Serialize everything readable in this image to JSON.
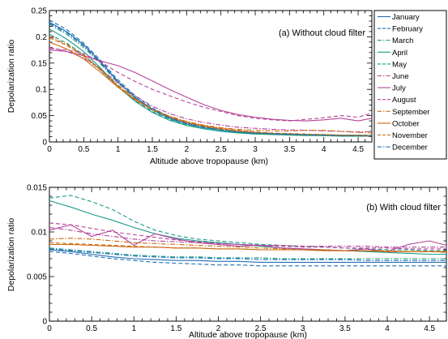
{
  "chart_data": [
    {
      "type": "line",
      "title": "(a) Without cloud filter",
      "xlabel": "Altitude above tropopause (km)",
      "ylabel": "Depolarization ratio",
      "xlim": [
        0,
        4.7
      ],
      "ylim": [
        0,
        0.25
      ],
      "x_ticks": [
        0,
        0.5,
        1,
        1.5,
        2,
        2.5,
        3,
        3.5,
        4,
        4.5
      ],
      "y_ticks": [
        0,
        0.05,
        0.1,
        0.15,
        0.2,
        0.25
      ],
      "x_tick_labels": [
        "0",
        "0.5",
        "1",
        "1.5",
        "2",
        "2.5",
        "3",
        "3.5",
        "4",
        "4.5"
      ],
      "y_tick_labels": [
        "0",
        "0.05",
        "0.1",
        "0.15",
        "0.2",
        "0.25"
      ],
      "x": [
        0,
        0.25,
        0.5,
        0.75,
        1,
        1.25,
        1.5,
        1.75,
        2,
        2.25,
        2.5,
        2.75,
        3,
        3.25,
        3.5,
        3.75,
        4,
        4.25,
        4.5,
        4.7
      ],
      "legend_position": "right, outside",
      "grid": false,
      "series": [
        {
          "name": "January",
          "color": "#1f6fb4",
          "dash": "solid",
          "values": [
            0.228,
            0.21,
            0.185,
            0.152,
            0.115,
            0.085,
            0.062,
            0.045,
            0.034,
            0.027,
            0.022,
            0.018,
            0.016,
            0.015,
            0.014,
            0.013,
            0.012,
            0.012,
            0.011,
            0.011
          ]
        },
        {
          "name": "February",
          "color": "#1f6fb4",
          "dash": "dashed",
          "values": [
            0.232,
            0.214,
            0.188,
            0.155,
            0.118,
            0.088,
            0.065,
            0.048,
            0.036,
            0.029,
            0.023,
            0.019,
            0.017,
            0.016,
            0.015,
            0.014,
            0.013,
            0.012,
            0.012,
            0.012
          ]
        },
        {
          "name": "March",
          "color": "#1a9a8a",
          "dash": "dashdot",
          "values": [
            0.224,
            0.205,
            0.18,
            0.148,
            0.112,
            0.083,
            0.06,
            0.044,
            0.033,
            0.027,
            0.022,
            0.018,
            0.016,
            0.015,
            0.014,
            0.013,
            0.013,
            0.012,
            0.012,
            0.012
          ]
        },
        {
          "name": "April",
          "color": "#1a9a8a",
          "dash": "solid",
          "values": [
            0.215,
            0.196,
            0.172,
            0.14,
            0.105,
            0.077,
            0.056,
            0.041,
            0.031,
            0.025,
            0.02,
            0.017,
            0.015,
            0.014,
            0.013,
            0.012,
            0.012,
            0.011,
            0.011,
            0.011
          ]
        },
        {
          "name": "May",
          "color": "#1a9a8a",
          "dash": "dashed",
          "values": [
            0.205,
            0.188,
            0.166,
            0.136,
            0.104,
            0.078,
            0.058,
            0.043,
            0.033,
            0.027,
            0.022,
            0.019,
            0.017,
            0.016,
            0.015,
            0.014,
            0.014,
            0.013,
            0.013,
            0.013
          ]
        },
        {
          "name": "June",
          "color": "#b4449a",
          "dash": "dashdot",
          "values": [
            0.18,
            0.172,
            0.16,
            0.138,
            0.112,
            0.088,
            0.068,
            0.054,
            0.044,
            0.037,
            0.032,
            0.028,
            0.026,
            0.024,
            0.023,
            0.022,
            0.021,
            0.02,
            0.019,
            0.02
          ]
        },
        {
          "name": "July",
          "color": "#b4449a",
          "dash": "solid",
          "values": [
            0.175,
            0.172,
            0.164,
            0.154,
            0.145,
            0.132,
            0.116,
            0.1,
            0.085,
            0.071,
            0.06,
            0.052,
            0.047,
            0.043,
            0.041,
            0.04,
            0.042,
            0.045,
            0.04,
            0.045
          ]
        },
        {
          "name": "August",
          "color": "#b4449a",
          "dash": "dashed",
          "values": [
            0.178,
            0.175,
            0.168,
            0.152,
            0.132,
            0.115,
            0.1,
            0.088,
            0.076,
            0.066,
            0.058,
            0.05,
            0.045,
            0.042,
            0.04,
            0.043,
            0.046,
            0.05,
            0.047,
            0.055
          ]
        },
        {
          "name": "September",
          "color": "#cc6a10",
          "dash": "dashdot",
          "values": [
            0.2,
            0.186,
            0.165,
            0.138,
            0.108,
            0.082,
            0.063,
            0.049,
            0.039,
            0.032,
            0.027,
            0.024,
            0.022,
            0.021,
            0.021,
            0.022,
            0.022,
            0.02,
            0.018,
            0.017
          ]
        },
        {
          "name": "October",
          "color": "#cc6a10",
          "dash": "solid",
          "values": [
            0.19,
            0.177,
            0.158,
            0.132,
            0.104,
            0.08,
            0.061,
            0.047,
            0.037,
            0.03,
            0.025,
            0.021,
            0.018,
            0.016,
            0.015,
            0.014,
            0.013,
            0.012,
            0.012,
            0.011
          ]
        },
        {
          "name": "November",
          "color": "#cc6a10",
          "dash": "dashed",
          "values": [
            0.198,
            0.184,
            0.163,
            0.136,
            0.106,
            0.081,
            0.062,
            0.048,
            0.038,
            0.031,
            0.026,
            0.022,
            0.019,
            0.017,
            0.016,
            0.015,
            0.014,
            0.013,
            0.013,
            0.012
          ]
        },
        {
          "name": "December",
          "color": "#1f6fb4",
          "dash": "dashdot",
          "values": [
            0.226,
            0.208,
            0.183,
            0.15,
            0.114,
            0.085,
            0.062,
            0.046,
            0.035,
            0.028,
            0.023,
            0.019,
            0.017,
            0.016,
            0.015,
            0.014,
            0.013,
            0.012,
            0.012,
            0.011
          ]
        }
      ]
    },
    {
      "type": "line",
      "title": "(b) With cloud filter",
      "xlabel": "Altitude above tropopause (km)",
      "ylabel": "Depolarization ratio",
      "xlim": [
        0,
        4.7
      ],
      "ylim": [
        0,
        0.015
      ],
      "x_ticks": [
        0,
        0.5,
        1,
        1.5,
        2,
        2.5,
        3,
        3.5,
        4,
        4.5
      ],
      "y_ticks": [
        0,
        0.005,
        0.01,
        0.015
      ],
      "x_tick_labels": [
        "0",
        "0.5",
        "1",
        "1.5",
        "2",
        "2.5",
        "3",
        "3.5",
        "4",
        "4.5"
      ],
      "y_tick_labels": [
        "0",
        "0.005",
        "0.01",
        "0.015"
      ],
      "x": [
        0,
        0.25,
        0.5,
        0.75,
        1,
        1.25,
        1.5,
        1.75,
        2,
        2.25,
        2.5,
        2.75,
        3,
        3.25,
        3.5,
        3.75,
        4,
        4.25,
        4.5,
        4.7
      ],
      "grid": false,
      "series": [
        {
          "name": "January",
          "color": "#1f6fb4",
          "dash": "solid",
          "values": [
            0.008,
            0.0078,
            0.0075,
            0.0072,
            0.007,
            0.0069,
            0.0068,
            0.0068,
            0.0067,
            0.0067,
            0.0066,
            0.0066,
            0.0066,
            0.0066,
            0.0066,
            0.0066,
            0.0066,
            0.0066,
            0.0066,
            0.0066
          ]
        },
        {
          "name": "February",
          "color": "#1f6fb4",
          "dash": "dashed",
          "values": [
            0.0078,
            0.0076,
            0.0073,
            0.007,
            0.0068,
            0.0066,
            0.0065,
            0.0064,
            0.0063,
            0.0063,
            0.0062,
            0.0062,
            0.0062,
            0.0062,
            0.0062,
            0.0062,
            0.0062,
            0.0062,
            0.0062,
            0.0062
          ]
        },
        {
          "name": "March",
          "color": "#1a9a8a",
          "dash": "dashdot",
          "values": [
            0.0082,
            0.008,
            0.0078,
            0.0076,
            0.0074,
            0.0073,
            0.0072,
            0.0072,
            0.0071,
            0.0071,
            0.0071,
            0.007,
            0.007,
            0.007,
            0.007,
            0.007,
            0.007,
            0.007,
            0.007,
            0.007
          ]
        },
        {
          "name": "April",
          "color": "#1a9a8a",
          "dash": "solid",
          "values": [
            0.0135,
            0.0128,
            0.012,
            0.0113,
            0.0105,
            0.0098,
            0.0093,
            0.009,
            0.0088,
            0.0086,
            0.0084,
            0.0082,
            0.0081,
            0.008,
            0.0079,
            0.0078,
            0.0077,
            0.0076,
            0.0075,
            0.0075
          ]
        },
        {
          "name": "May",
          "color": "#1a9a8a",
          "dash": "dashed",
          "values": [
            0.0138,
            0.0141,
            0.0134,
            0.0125,
            0.0112,
            0.0102,
            0.0096,
            0.0092,
            0.009,
            0.0088,
            0.0086,
            0.0085,
            0.0084,
            0.0083,
            0.0082,
            0.0081,
            0.008,
            0.008,
            0.0079,
            0.0079
          ]
        },
        {
          "name": "June",
          "color": "#b4449a",
          "dash": "dashdot",
          "values": [
            0.0105,
            0.0102,
            0.0098,
            0.0095,
            0.0092,
            0.009,
            0.0089,
            0.0088,
            0.0087,
            0.0086,
            0.0085,
            0.0085,
            0.0084,
            0.0084,
            0.0084,
            0.0084,
            0.0083,
            0.0083,
            0.0083,
            0.0083
          ]
        },
        {
          "name": "July",
          "color": "#b4449a",
          "dash": "solid",
          "values": [
            0.0102,
            0.0108,
            0.0095,
            0.0102,
            0.0085,
            0.0098,
            0.0092,
            0.0088,
            0.0086,
            0.0084,
            0.0085,
            0.0082,
            0.0081,
            0.008,
            0.0079,
            0.0081,
            0.0078,
            0.0086,
            0.009,
            0.0085
          ]
        },
        {
          "name": "August",
          "color": "#b4449a",
          "dash": "dashed",
          "values": [
            0.011,
            0.0108,
            0.0104,
            0.01,
            0.0097,
            0.0094,
            0.0091,
            0.0089,
            0.0087,
            0.0086,
            0.0085,
            0.0084,
            0.0083,
            0.0083,
            0.0082,
            0.0082,
            0.0082,
            0.0081,
            0.0081,
            0.0081
          ]
        },
        {
          "name": "September",
          "color": "#cc6a10",
          "dash": "dashdot",
          "values": [
            0.0092,
            0.0093,
            0.0092,
            0.009,
            0.0088,
            0.0087,
            0.0086,
            0.0085,
            0.0084,
            0.0083,
            0.0082,
            0.0081,
            0.008,
            0.008,
            0.0079,
            0.0079,
            0.0078,
            0.0078,
            0.0078,
            0.0077
          ]
        },
        {
          "name": "October",
          "color": "#cc6a10",
          "dash": "solid",
          "values": [
            0.0086,
            0.0086,
            0.0085,
            0.0084,
            0.0083,
            0.0083,
            0.0082,
            0.0082,
            0.0081,
            0.0081,
            0.008,
            0.008,
            0.008,
            0.0079,
            0.0079,
            0.0079,
            0.0078,
            0.0078,
            0.0078,
            0.0078
          ]
        },
        {
          "name": "November",
          "color": "#cc6a10",
          "dash": "dashed",
          "values": [
            0.0088,
            0.0087,
            0.0086,
            0.0085,
            0.0084,
            0.0083,
            0.0082,
            0.0082,
            0.0081,
            0.0081,
            0.008,
            0.008,
            0.008,
            0.0079,
            0.0079,
            0.0079,
            0.0079,
            0.0078,
            0.0078,
            0.0078
          ]
        },
        {
          "name": "December",
          "color": "#1f6fb4",
          "dash": "dashdot",
          "values": [
            0.0081,
            0.0079,
            0.0077,
            0.0075,
            0.0073,
            0.0072,
            0.0071,
            0.0071,
            0.007,
            0.007,
            0.0069,
            0.0069,
            0.0069,
            0.0069,
            0.0069,
            0.0068,
            0.0068,
            0.0068,
            0.0068,
            0.0068
          ]
        }
      ]
    }
  ]
}
